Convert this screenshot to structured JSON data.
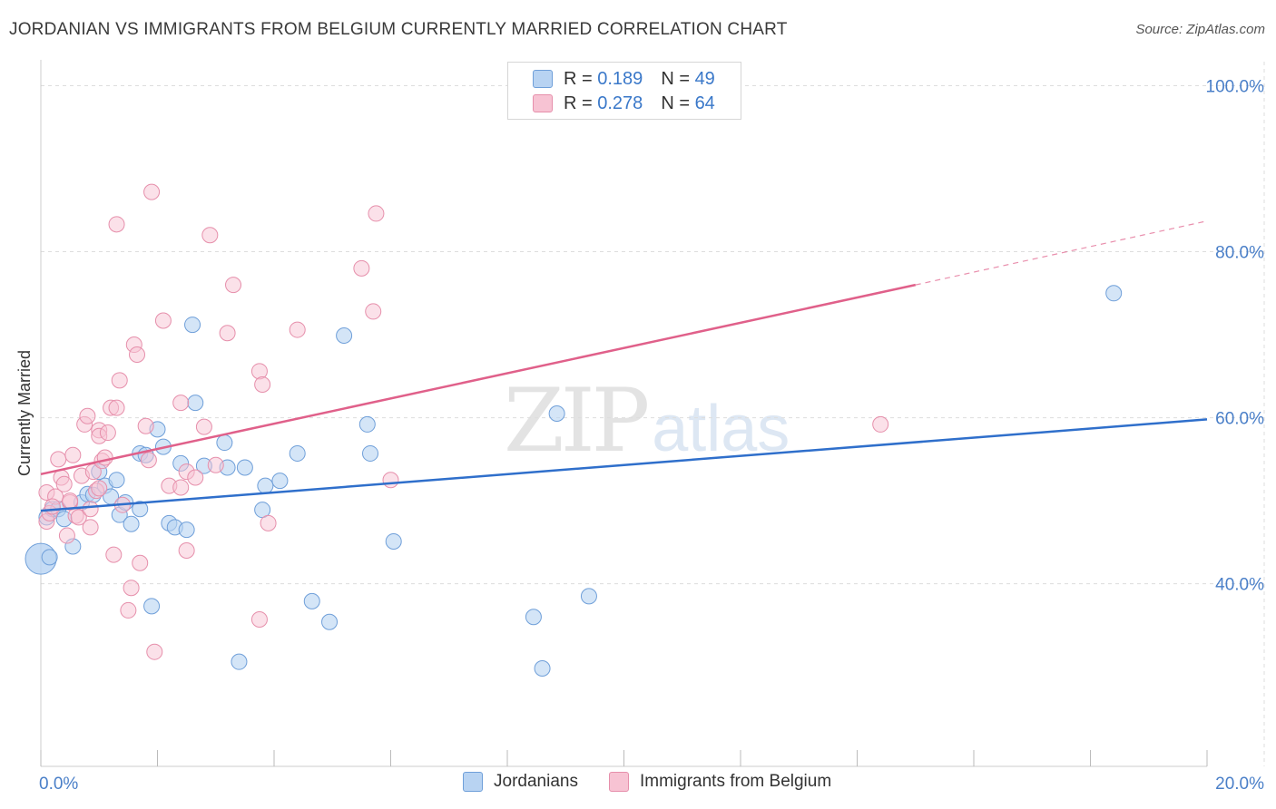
{
  "title": "JORDANIAN VS IMMIGRANTS FROM BELGIUM CURRENTLY MARRIED CORRELATION CHART",
  "source": "Source: ZipAtlas.com",
  "watermark": {
    "zip": "ZIP",
    "atlas": "atlas"
  },
  "legend": {
    "rows": [
      {
        "r_label": "R =",
        "r_value": "0.189",
        "n_label": "N =",
        "n_value": "49"
      },
      {
        "r_label": "R =",
        "r_value": "0.278",
        "n_label": "N =",
        "n_value": "64"
      }
    ]
  },
  "bottom_legend": [
    "Jordanians",
    "Immigrants from Belgium"
  ],
  "colors": {
    "blue_fill": "#b8d3f2",
    "blue_stroke": "#6f9fd9",
    "blue_line": "#2f6fcb",
    "pink_fill": "#f7c3d3",
    "pink_stroke": "#e68fab",
    "pink_line": "#e0608a",
    "grid": "#dddddd",
    "tick_text": "#4a7fc8"
  },
  "chart_data": {
    "type": "scatter",
    "title": "JORDANIAN VS IMMIGRANTS FROM BELGIUM CURRENTLY MARRIED CORRELATION CHART",
    "xlabel": "",
    "ylabel": "Currently Married",
    "xlim": [
      0,
      20
    ],
    "ylim": [
      18,
      101.8
    ],
    "x_tick_labels": [
      "0.0%",
      "20.0%"
    ],
    "y_ticks": [
      40,
      60,
      80,
      100
    ],
    "y_tick_labels": [
      "40.0%",
      "60.0%",
      "80.0%",
      "100.0%"
    ],
    "grid": true,
    "series": [
      {
        "name": "Jordanians",
        "color": "blue",
        "R": 0.189,
        "N": 49,
        "trend": {
          "x": [
            0,
            20
          ],
          "y": [
            48.8,
            59.8
          ]
        },
        "points": [
          [
            0.0,
            43.0
          ],
          [
            0.1,
            48.0
          ],
          [
            0.2,
            49.0
          ],
          [
            0.3,
            49.0
          ],
          [
            0.4,
            47.8
          ],
          [
            0.55,
            44.5
          ],
          [
            0.7,
            49.8
          ],
          [
            0.8,
            50.8
          ],
          [
            0.9,
            50.7
          ],
          [
            1.0,
            53.5
          ],
          [
            1.1,
            51.8
          ],
          [
            1.2,
            50.5
          ],
          [
            1.3,
            52.5
          ],
          [
            1.35,
            48.3
          ],
          [
            1.45,
            49.8
          ],
          [
            1.55,
            47.2
          ],
          [
            1.7,
            49.0
          ],
          [
            1.7,
            55.7
          ],
          [
            1.8,
            55.5
          ],
          [
            1.9,
            37.3
          ],
          [
            2.0,
            58.6
          ],
          [
            2.1,
            56.5
          ],
          [
            2.2,
            47.3
          ],
          [
            2.3,
            46.8
          ],
          [
            2.4,
            54.5
          ],
          [
            2.5,
            46.5
          ],
          [
            2.6,
            71.2
          ],
          [
            2.65,
            61.8
          ],
          [
            2.8,
            54.2
          ],
          [
            3.15,
            57.0
          ],
          [
            3.2,
            54.0
          ],
          [
            3.4,
            30.6
          ],
          [
            3.5,
            54.0
          ],
          [
            3.8,
            48.9
          ],
          [
            3.85,
            51.8
          ],
          [
            4.1,
            52.4
          ],
          [
            4.4,
            55.7
          ],
          [
            4.65,
            37.9
          ],
          [
            4.95,
            35.4
          ],
          [
            5.2,
            69.9
          ],
          [
            5.6,
            59.2
          ],
          [
            5.65,
            55.7
          ],
          [
            6.05,
            45.1
          ],
          [
            8.45,
            36.0
          ],
          [
            8.6,
            29.8
          ],
          [
            8.85,
            60.5
          ],
          [
            9.4,
            38.5
          ],
          [
            18.4,
            75.0
          ],
          [
            0.15,
            43.2
          ]
        ]
      },
      {
        "name": "Immigrants from Belgium",
        "color": "pink",
        "R": 0.278,
        "N": 64,
        "trend": {
          "x": [
            0,
            15
          ],
          "y": [
            53.2,
            76.0
          ]
        },
        "trend_dashed": {
          "x": [
            15,
            20
          ],
          "y": [
            76.0,
            83.7
          ]
        },
        "points": [
          [
            0.1,
            47.5
          ],
          [
            0.1,
            51.0
          ],
          [
            0.15,
            48.5
          ],
          [
            0.25,
            50.5
          ],
          [
            0.3,
            55.0
          ],
          [
            0.35,
            52.8
          ],
          [
            0.4,
            52.0
          ],
          [
            0.45,
            45.8
          ],
          [
            0.5,
            49.8
          ],
          [
            0.55,
            55.5
          ],
          [
            0.6,
            48.2
          ],
          [
            0.65,
            48.0
          ],
          [
            0.7,
            53.0
          ],
          [
            0.75,
            59.2
          ],
          [
            0.8,
            60.2
          ],
          [
            0.85,
            46.8
          ],
          [
            0.9,
            53.5
          ],
          [
            0.95,
            51.2
          ],
          [
            1.0,
            58.5
          ],
          [
            1.0,
            57.8
          ],
          [
            1.05,
            54.8
          ],
          [
            1.1,
            55.2
          ],
          [
            1.15,
            58.2
          ],
          [
            1.2,
            61.2
          ],
          [
            1.25,
            43.5
          ],
          [
            1.3,
            61.2
          ],
          [
            1.3,
            83.3
          ],
          [
            1.35,
            64.5
          ],
          [
            1.4,
            49.5
          ],
          [
            1.5,
            36.8
          ],
          [
            1.55,
            39.5
          ],
          [
            1.6,
            68.8
          ],
          [
            1.65,
            67.6
          ],
          [
            1.7,
            42.5
          ],
          [
            1.8,
            59.0
          ],
          [
            1.85,
            54.9
          ],
          [
            1.9,
            87.2
          ],
          [
            1.95,
            31.8
          ],
          [
            2.1,
            71.7
          ],
          [
            2.2,
            51.8
          ],
          [
            2.4,
            51.6
          ],
          [
            2.4,
            61.8
          ],
          [
            2.5,
            53.5
          ],
          [
            2.5,
            44.0
          ],
          [
            2.65,
            52.8
          ],
          [
            2.8,
            58.9
          ],
          [
            2.9,
            82.0
          ],
          [
            3.0,
            54.3
          ],
          [
            3.2,
            70.2
          ],
          [
            3.3,
            76.0
          ],
          [
            3.75,
            35.7
          ],
          [
            3.75,
            65.6
          ],
          [
            3.8,
            64.0
          ],
          [
            3.9,
            47.3
          ],
          [
            4.4,
            70.6
          ],
          [
            5.5,
            78.0
          ],
          [
            5.7,
            72.8
          ],
          [
            5.75,
            84.6
          ],
          [
            6.0,
            52.5
          ],
          [
            14.4,
            59.2
          ],
          [
            0.2,
            49.3
          ],
          [
            0.5,
            50.0
          ],
          [
            1.0,
            51.5
          ],
          [
            0.85,
            49.0
          ]
        ]
      }
    ]
  }
}
